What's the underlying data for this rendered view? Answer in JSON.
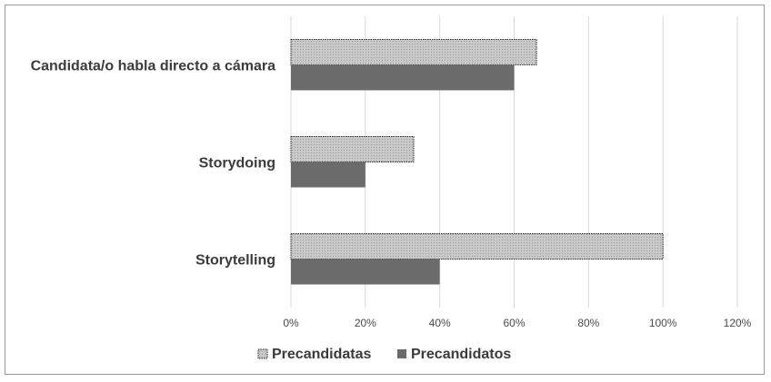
{
  "chart_data": {
    "type": "bar",
    "orientation": "horizontal",
    "categories": [
      "Candidata/o habla directo a cámara",
      "Storydoing",
      "Storytelling"
    ],
    "series": [
      {
        "name": "Precandidatas",
        "values": [
          0.66,
          0.33,
          1.0
        ],
        "color": "#c4c4c4",
        "pattern": "dotted-fill"
      },
      {
        "name": "Precandidatos",
        "values": [
          0.6,
          0.2,
          0.4
        ],
        "color": "#6b6b6b"
      }
    ],
    "x_ticks": [
      "0%",
      "20%",
      "40%",
      "60%",
      "80%",
      "100%",
      "120%"
    ],
    "xlim": [
      0,
      1.2
    ],
    "grid": "vertical",
    "legend_position": "bottom",
    "title": "",
    "xlabel": "",
    "ylabel": ""
  }
}
